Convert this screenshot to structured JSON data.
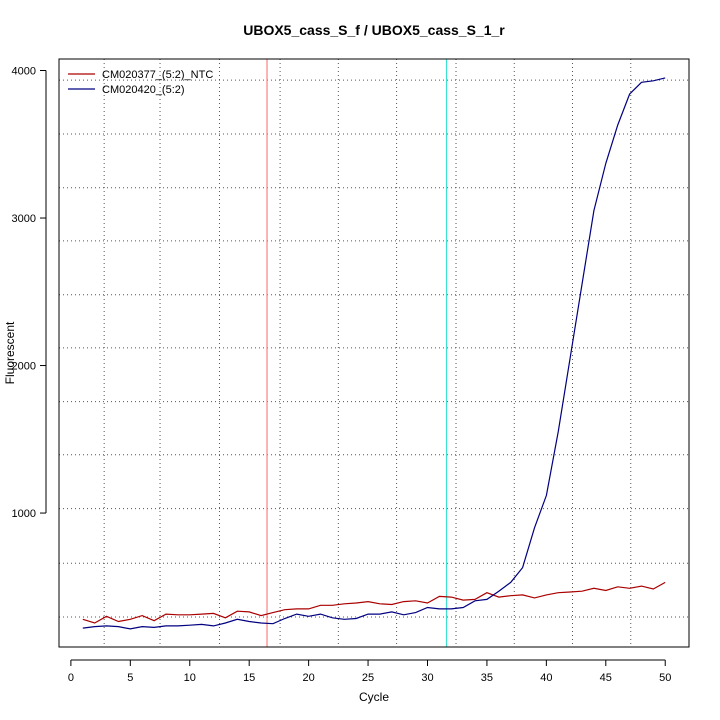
{
  "chart_data": {
    "type": "line",
    "title": "UBOX5_cass_S_f / UBOX5_cass_S_1_r",
    "xlabel": "Cycle",
    "ylabel": "Fluorescent",
    "xlim": [
      -1,
      52
    ],
    "ylim": [
      92,
      4078
    ],
    "x_ticks": [
      0,
      5,
      10,
      15,
      20,
      25,
      30,
      35,
      40,
      45,
      50
    ],
    "y_ticks": [
      1000,
      2000,
      3000,
      4000
    ],
    "grid": "dotted",
    "legend_position": "top-left",
    "vlines": [
      {
        "x": 16.5,
        "color": "#ff8080"
      },
      {
        "x": 31.6,
        "color": "#40e0d0"
      }
    ],
    "series": [
      {
        "name": "CM020377_(5:2)_NTC",
        "color": "#aa0000",
        "x": [
          1,
          2,
          3,
          4,
          5,
          6,
          7,
          8,
          9,
          10,
          11,
          12,
          13,
          14,
          15,
          16,
          17,
          18,
          19,
          20,
          21,
          22,
          23,
          24,
          25,
          26,
          27,
          28,
          29,
          30,
          31,
          32,
          33,
          34,
          35,
          36,
          37,
          38,
          39,
          40,
          41,
          42,
          43,
          44,
          45,
          46,
          47,
          48,
          49,
          50
        ],
        "values": [
          280,
          255,
          300,
          265,
          280,
          305,
          270,
          315,
          310,
          310,
          315,
          320,
          290,
          335,
          330,
          305,
          325,
          345,
          350,
          350,
          375,
          375,
          385,
          390,
          400,
          385,
          380,
          400,
          405,
          390,
          435,
          430,
          410,
          415,
          460,
          430,
          440,
          445,
          425,
          445,
          460,
          465,
          470,
          490,
          475,
          500,
          490,
          505,
          485,
          530
        ]
      },
      {
        "name": "CM020420_(5:2)",
        "color": "#000080",
        "x": [
          1,
          2,
          3,
          4,
          5,
          6,
          7,
          8,
          9,
          10,
          11,
          12,
          13,
          14,
          15,
          16,
          17,
          18,
          19,
          20,
          21,
          22,
          23,
          24,
          25,
          26,
          27,
          28,
          29,
          30,
          31,
          32,
          33,
          34,
          35,
          36,
          37,
          38,
          39,
          40,
          41,
          42,
          43,
          44,
          45,
          46,
          47,
          48,
          49,
          50
        ],
        "values": [
          220,
          230,
          235,
          230,
          215,
          230,
          225,
          235,
          235,
          240,
          245,
          235,
          255,
          280,
          265,
          255,
          250,
          285,
          315,
          300,
          315,
          290,
          280,
          285,
          315,
          315,
          330,
          310,
          325,
          360,
          350,
          350,
          360,
          405,
          415,
          470,
          530,
          630,
          900,
          1120,
          1550,
          2050,
          2550,
          3050,
          3370,
          3630,
          3840,
          3920,
          3930,
          3950
        ]
      }
    ]
  }
}
